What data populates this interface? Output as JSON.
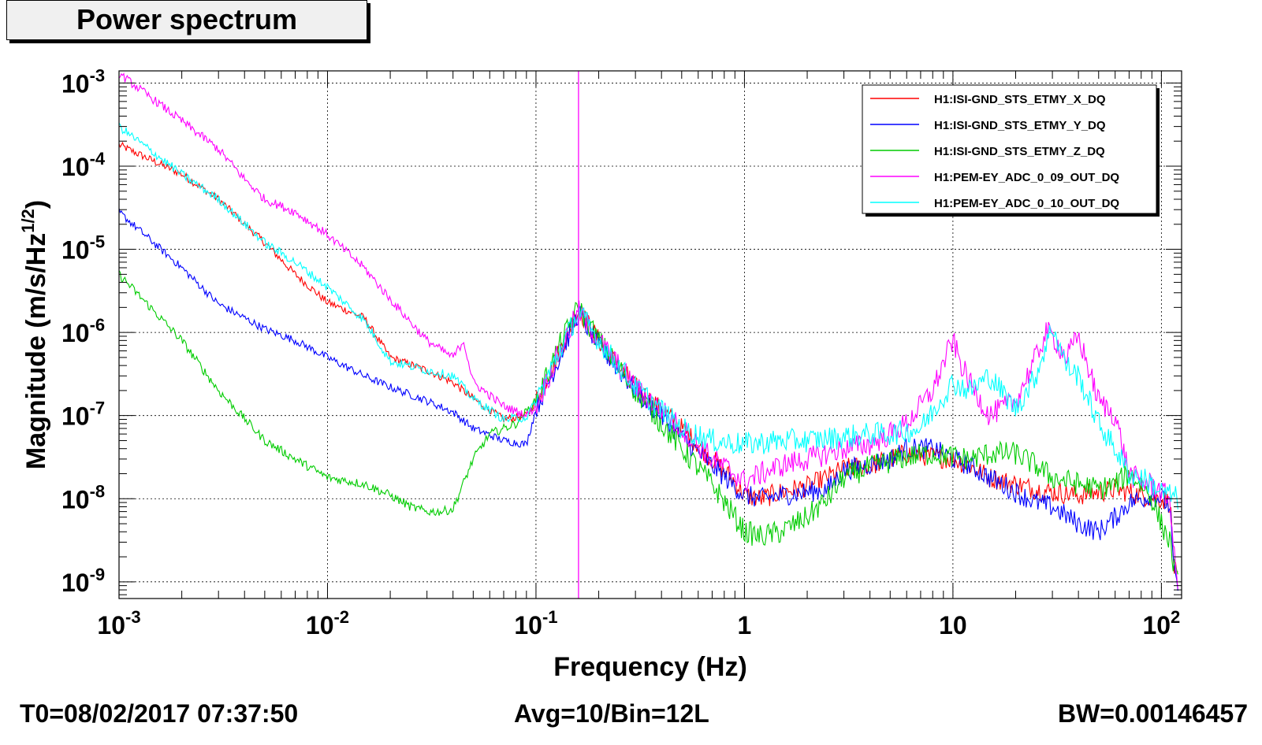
{
  "title": "Power spectrum",
  "footer": {
    "t0": "T0=08/02/2017 07:37:50",
    "avg": "Avg=10/Bin=12L",
    "bw": "BW=0.00146457"
  },
  "chart_data": {
    "type": "line",
    "title": "Power spectrum",
    "xlabel": "Frequency (Hz)",
    "ylabel": "Magnitude (m/s/Hz^{1/2})",
    "xscale": "log",
    "yscale": "log",
    "xlim": [
      0.001,
      125
    ],
    "ylim": [
      6.3e-10,
      0.0014
    ],
    "grid": true,
    "legend_position": "top-right",
    "x_ticks": [
      {
        "value": 0.001,
        "base": "10",
        "exp": "-3"
      },
      {
        "value": 0.01,
        "base": "10",
        "exp": "-2"
      },
      {
        "value": 0.1,
        "base": "10",
        "exp": "-1"
      },
      {
        "value": 1,
        "base": "1",
        "exp": ""
      },
      {
        "value": 10,
        "base": "10",
        "exp": ""
      },
      {
        "value": 100,
        "base": "10",
        "exp": "2"
      }
    ],
    "y_ticks": [
      {
        "value": 1e-09,
        "base": "10",
        "exp": "-9"
      },
      {
        "value": 1e-08,
        "base": "10",
        "exp": "-8"
      },
      {
        "value": 1e-07,
        "base": "10",
        "exp": "-7"
      },
      {
        "value": 1e-06,
        "base": "10",
        "exp": "-6"
      },
      {
        "value": 1e-05,
        "base": "10",
        "exp": "-5"
      },
      {
        "value": 0.0001,
        "base": "10",
        "exp": "-4"
      },
      {
        "value": 0.001,
        "base": "10",
        "exp": "-3"
      }
    ],
    "vertical_marker": {
      "x": 0.16,
      "color": "#ff00ff"
    },
    "series": [
      {
        "name": "H1:ISI-GND_STS_ETMY_X_DQ",
        "color": "#ff0000",
        "noise": 0.08,
        "x": [
          0.001,
          0.002,
          0.003,
          0.005,
          0.007,
          0.01,
          0.015,
          0.02,
          0.03,
          0.04,
          0.05,
          0.07,
          0.09,
          0.1,
          0.13,
          0.16,
          0.2,
          0.3,
          0.5,
          0.7,
          0.9,
          1.0,
          1.2,
          1.5,
          2.0,
          2.5,
          3.0,
          4.0,
          5.0,
          6.0,
          8.0,
          10,
          12,
          15,
          20,
          25,
          30,
          40,
          50,
          60,
          70,
          80,
          90,
          100,
          110,
          115,
          120
        ],
        "y": [
          0.00018,
          8e-05,
          4e-05,
          1.2e-05,
          5e-06,
          2.3e-06,
          1.5e-06,
          5e-07,
          3.5e-07,
          2.5e-07,
          1.6e-07,
          9e-08,
          1e-07,
          1.5e-07,
          6e-07,
          1.9e-06,
          8e-07,
          2.2e-07,
          7e-08,
          3e-08,
          1.6e-08,
          1.1e-08,
          1e-08,
          1.2e-08,
          1.4e-08,
          1.8e-08,
          2.3e-08,
          2.5e-08,
          3e-08,
          3.5e-08,
          3.2e-08,
          3e-08,
          2.5e-08,
          1.8e-08,
          1.5e-08,
          1.3e-08,
          1.2e-08,
          1.1e-08,
          1.2e-08,
          1.3e-08,
          1.2e-08,
          1.1e-08,
          1.05e-08,
          1e-08,
          9e-09,
          1.5e-09,
          1e-09
        ]
      },
      {
        "name": "H1:ISI-GND_STS_ETMY_Y_DQ",
        "color": "#0000ff",
        "noise": 0.08,
        "x": [
          0.001,
          0.002,
          0.003,
          0.005,
          0.007,
          0.01,
          0.015,
          0.02,
          0.03,
          0.04,
          0.05,
          0.07,
          0.09,
          0.1,
          0.13,
          0.16,
          0.2,
          0.3,
          0.5,
          0.7,
          0.9,
          1.0,
          1.2,
          1.5,
          2.0,
          2.5,
          3.0,
          4.0,
          5.0,
          6.0,
          8.0,
          10,
          12,
          15,
          20,
          25,
          30,
          40,
          50,
          60,
          70,
          80,
          90,
          100,
          110,
          115,
          120
        ],
        "y": [
          2.8e-05,
          6e-06,
          2.2e-06,
          1.1e-06,
          8e-07,
          5e-07,
          3e-07,
          2.2e-07,
          1.5e-07,
          1.1e-07,
          7e-08,
          5e-08,
          4.5e-08,
          1.2e-07,
          5e-07,
          1.7e-06,
          7e-07,
          2e-07,
          5.5e-08,
          2.5e-08,
          1.4e-08,
          1.1e-08,
          1e-08,
          1.1e-08,
          1.2e-08,
          1.3e-08,
          2.2e-08,
          2.6e-08,
          3e-08,
          4e-08,
          4e-08,
          3e-08,
          2.5e-08,
          1.8e-08,
          1.2e-08,
          9e-09,
          8e-09,
          5e-09,
          4e-09,
          6e-09,
          9e-09,
          1e-08,
          1.1e-08,
          1e-08,
          8e-09,
          1.2e-09,
          9e-10
        ]
      },
      {
        "name": "H1:ISI-GND_STS_ETMY_Z_DQ",
        "color": "#00cc00",
        "noise": 0.09,
        "x": [
          0.001,
          0.002,
          0.003,
          0.005,
          0.007,
          0.01,
          0.015,
          0.02,
          0.025,
          0.03,
          0.035,
          0.04,
          0.05,
          0.06,
          0.08,
          0.1,
          0.13,
          0.16,
          0.2,
          0.3,
          0.5,
          0.7,
          0.9,
          1.0,
          1.2,
          1.5,
          2.0,
          2.5,
          3.0,
          4.0,
          5.0,
          6.0,
          8.0,
          10,
          12,
          15,
          20,
          25,
          30,
          40,
          50,
          60,
          70,
          80,
          90,
          100,
          110,
          115,
          120
        ],
        "y": [
          5e-06,
          8e-07,
          2e-07,
          5e-08,
          3e-08,
          1.8e-08,
          1.5e-08,
          1.1e-08,
          8e-09,
          7e-09,
          7e-09,
          7.5e-09,
          3e-08,
          6e-08,
          8e-08,
          1.5e-07,
          7e-07,
          2e-06,
          8e-07,
          2e-07,
          4e-08,
          1.5e-08,
          6e-09,
          4e-09,
          3.5e-09,
          4e-09,
          6e-09,
          1e-08,
          1.8e-08,
          2.4e-08,
          2.8e-08,
          3.2e-08,
          3.5e-08,
          3.2e-08,
          3e-08,
          3.5e-08,
          3.5e-08,
          2.5e-08,
          1.8e-08,
          1.5e-08,
          1.3e-08,
          1.5e-08,
          2e-08,
          1.5e-08,
          1e-08,
          5e-09,
          3e-09,
          1.5e-09,
          9e-10
        ]
      },
      {
        "name": "H1:PEM-EY_ADC_0_09_OUT_DQ",
        "color": "#ff00ff",
        "noise": 0.09,
        "x": [
          0.001,
          0.002,
          0.003,
          0.004,
          0.005,
          0.007,
          0.01,
          0.015,
          0.02,
          0.03,
          0.04,
          0.045,
          0.05,
          0.07,
          0.09,
          0.1,
          0.13,
          0.16,
          0.2,
          0.3,
          0.5,
          0.7,
          0.9,
          1.0,
          1.2,
          1.5,
          2.0,
          2.5,
          3.0,
          4.0,
          5.0,
          6.0,
          8.0,
          9.5,
          10,
          11,
          12,
          15,
          20,
          25,
          28,
          30,
          35,
          40,
          50,
          60,
          70,
          80,
          90,
          100,
          110,
          115,
          120
        ],
        "y": [
          0.0013,
          0.00035,
          0.00016,
          7e-05,
          4e-05,
          2.8e-05,
          1.5e-05,
          6e-06,
          2.5e-06,
          8e-07,
          5e-07,
          8e-07,
          2.5e-07,
          1.3e-07,
          1e-07,
          1.3e-07,
          6e-07,
          1.8e-06,
          8e-07,
          2.2e-07,
          7e-08,
          3e-08,
          2e-08,
          1.6e-08,
          2e-08,
          2.5e-08,
          3e-08,
          3.5e-08,
          4e-08,
          4.5e-08,
          6e-08,
          8e-08,
          2e-07,
          6e-07,
          8e-07,
          4e-07,
          2.5e-07,
          1e-07,
          1.5e-07,
          5e-07,
          1e-06,
          9e-07,
          5e-07,
          9e-07,
          1.5e-07,
          1e-07,
          2e-08,
          1.6e-08,
          1.5e-08,
          1.2e-08,
          1e-08,
          2e-09,
          1e-09
        ]
      },
      {
        "name": "H1:PEM-EY_ADC_0_10_OUT_DQ",
        "color": "#00ffff",
        "noise": 0.09,
        "x": [
          0.001,
          0.002,
          0.003,
          0.005,
          0.007,
          0.01,
          0.015,
          0.02,
          0.03,
          0.04,
          0.05,
          0.07,
          0.09,
          0.1,
          0.13,
          0.16,
          0.2,
          0.3,
          0.5,
          0.7,
          1.0,
          1.5,
          2.0,
          3.0,
          4.0,
          5.0,
          7.0,
          10,
          12,
          15,
          20,
          25,
          30,
          35,
          40,
          50,
          60,
          70,
          80,
          90,
          100,
          110,
          115,
          120
        ],
        "y": [
          0.0003,
          8e-05,
          4e-05,
          1.2e-05,
          7e-06,
          3.5e-06,
          1.4e-06,
          4.5e-07,
          3.5e-07,
          3e-07,
          1.6e-07,
          9e-08,
          9.5e-08,
          1.5e-07,
          6e-07,
          1.8e-06,
          8e-07,
          2.2e-07,
          7e-08,
          5e-08,
          4.5e-08,
          5e-08,
          5e-08,
          5.5e-08,
          6e-08,
          6e-08,
          7e-08,
          2.5e-07,
          2e-07,
          3e-07,
          1.2e-07,
          3e-07,
          1.2e-06,
          4e-07,
          3e-07,
          8e-08,
          4e-08,
          2e-08,
          1.8e-08,
          1.5e-08,
          1.2e-08,
          1.1e-08,
          1.05e-08,
          1e-08
        ]
      }
    ]
  }
}
